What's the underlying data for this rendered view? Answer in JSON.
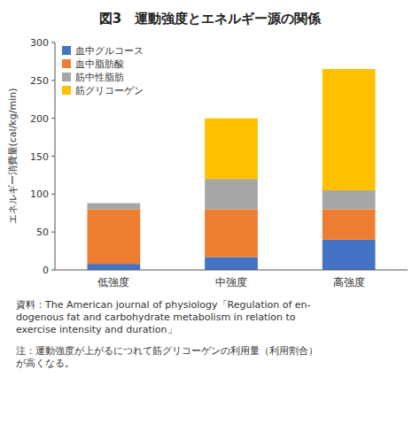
{
  "chart_data": {
    "type": "bar",
    "stacked": true,
    "title": "図3　運動強度とエネルギー源の関係",
    "y_label": "エネルギー消費量(cal/kg/min)",
    "categories": [
      "低強度",
      "中強度",
      "高強度"
    ],
    "series": [
      {
        "name": "血中グルコース",
        "color": "#4472c4",
        "values": [
          8,
          17,
          40
        ]
      },
      {
        "name": "血中脂肪酸",
        "color": "#ed7d31",
        "values": [
          72,
          63,
          40
        ]
      },
      {
        "name": "筋中性脂肪",
        "color": "#a6a6a6",
        "values": [
          8,
          40,
          25
        ]
      },
      {
        "name": "筋グリコーゲン",
        "color": "#ffc000",
        "values": [
          0,
          80,
          160
        ]
      }
    ],
    "ylim": [
      0,
      300
    ],
    "yticks": [
      0,
      50,
      100,
      150,
      200,
      250,
      300
    ],
    "grid": false,
    "legend": "upper left",
    "annotations": [
      "資料：The American journal of physiology「Regulation of en-\ndogenous fat and carbohydrate metabolism in relation to\nexercise intensity and duration」",
      "注：運動強度が上がるにつれて筋グリコーゲンの利用量（利用割合）\nが高くなる。"
    ]
  }
}
